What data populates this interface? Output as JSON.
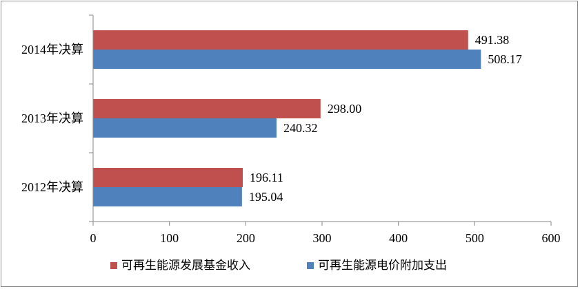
{
  "chart_data": {
    "type": "bar",
    "orientation": "horizontal",
    "categories": [
      "2012年决算",
      "2013年决算",
      "2014年决算"
    ],
    "series": [
      {
        "name": "可再生能源发展基金收入",
        "values": [
          196.11,
          298.0,
          491.38
        ],
        "labels": [
          "196.11",
          "298.00",
          "491.38"
        ],
        "color": "#C0504D"
      },
      {
        "name": "可再生能源电价附加支出",
        "values": [
          195.04,
          240.32,
          508.17
        ],
        "labels": [
          "195.04",
          "240.32",
          "508.17"
        ],
        "color": "#4F81BD"
      }
    ],
    "xlim": [
      0,
      600
    ],
    "xticks": [
      "0",
      "100",
      "200",
      "300",
      "400",
      "500",
      "600"
    ],
    "grid": false,
    "legend_position": "bottom"
  }
}
